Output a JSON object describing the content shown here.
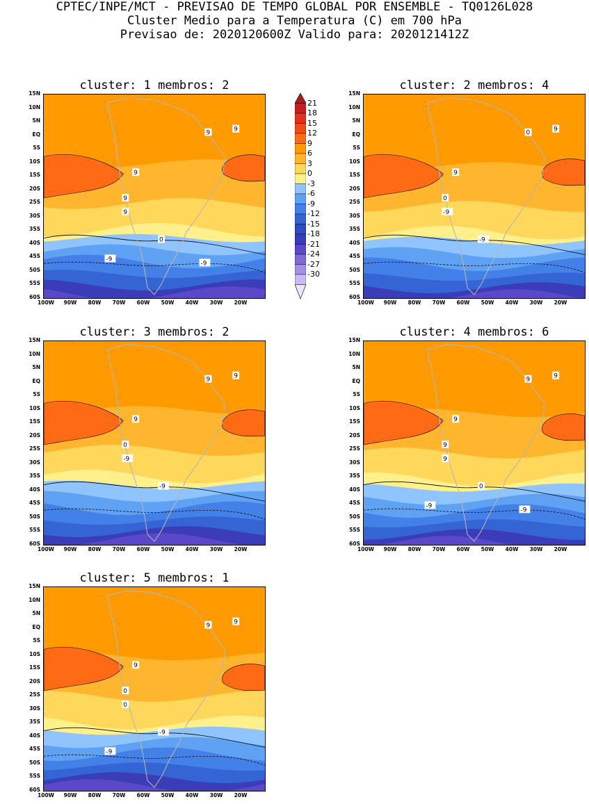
{
  "header": {
    "line1": "CPTEC/INPE/MCT - PREVISAO DE TEMPO GLOBAL POR ENSEMBLE - TQ0126L028",
    "line2": "Cluster Medio para a Temperatura (C) em 700 hPa",
    "line3": "Previsao de: 2020120600Z   Valido para: 2020121412Z"
  },
  "axes": {
    "lat_labels": [
      "15N",
      "10N",
      "5N",
      "EQ",
      "5S",
      "10S",
      "15S",
      "20S",
      "25S",
      "30S",
      "35S",
      "40S",
      "45S",
      "50S",
      "55S",
      "60S"
    ],
    "lon_labels": [
      "100W",
      "90W",
      "80W",
      "70W",
      "60W",
      "50W",
      "40W",
      "30W",
      "20W"
    ]
  },
  "panels": [
    {
      "title": "cluster: 1   membros: 2",
      "contour_labels": [
        "9",
        "9",
        "9",
        "9",
        "9",
        "0",
        "-9",
        "-9"
      ]
    },
    {
      "title": "cluster: 2   membros: 4",
      "contour_labels": [
        "9",
        "9",
        "0",
        "0",
        "-9",
        "-9"
      ]
    },
    {
      "title": "cluster: 3   membros: 2",
      "contour_labels": [
        "9",
        "9",
        "9",
        "0",
        "-9",
        "-9"
      ]
    },
    {
      "title": "cluster: 4   membros: 6",
      "contour_labels": [
        "9",
        "9",
        "9",
        "9",
        "9",
        "0",
        "-9",
        "-9"
      ]
    },
    {
      "title": "cluster: 5   membros: 1",
      "contour_labels": [
        "9",
        "9",
        "9",
        "0",
        "0",
        "-9",
        "-9"
      ]
    }
  ],
  "legend": {
    "labels": [
      "21",
      "18",
      "15",
      "12",
      "9",
      "6",
      "3",
      "0",
      "-3",
      "-6",
      "-9",
      "-12",
      "-15",
      "-18",
      "-21",
      "-24",
      "-27",
      "-30"
    ],
    "colors": [
      "#a51d1d",
      "#c81e1e",
      "#e0321e",
      "#f04b16",
      "#ff6a14",
      "#ff9a00",
      "#ffb52e",
      "#ffd75a",
      "#fff08c",
      "#8fc4ff",
      "#5fa2f4",
      "#4380e8",
      "#3564d4",
      "#2f4cc4",
      "#3a3cb8",
      "#5a48c8",
      "#8069d8",
      "#a58fe6",
      "#c9baf2",
      "#eee7fb"
    ]
  }
}
